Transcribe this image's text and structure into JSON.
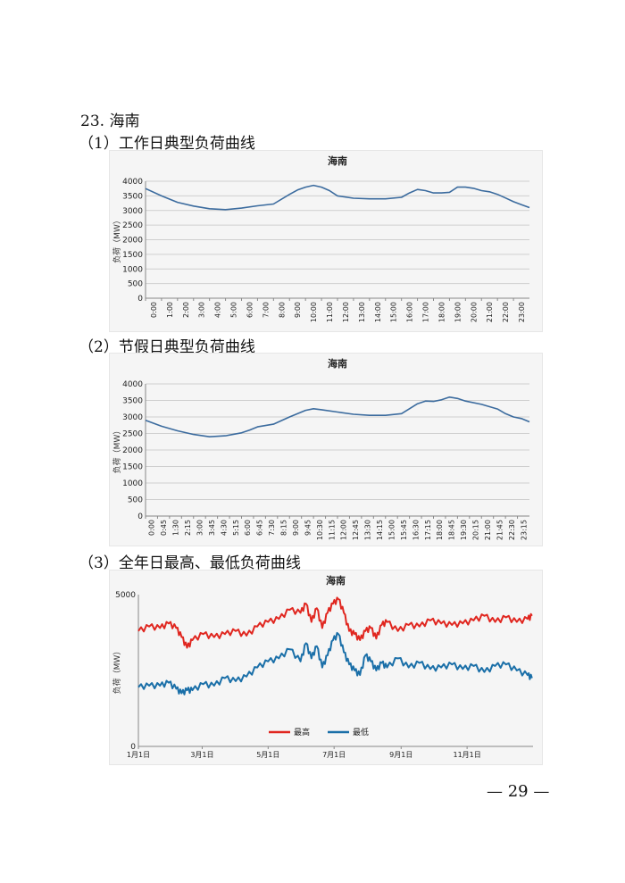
{
  "document": {
    "section_title": "23. 海南",
    "subtitles": [
      "（1）工作日典型负荷曲线",
      "（2）节假日典型负荷曲线",
      "（3）全年日最高、最低负荷曲线"
    ],
    "page_number": "— 29 —"
  },
  "chart_data": [
    {
      "type": "line",
      "title": "海南",
      "ylabel": "负荷（MW）",
      "xlabel": "",
      "ylim": [
        0,
        4000
      ],
      "yticks": [
        0,
        500,
        1000,
        1500,
        2000,
        2500,
        3000,
        3500,
        4000
      ],
      "grid": true,
      "legend": "none",
      "x_tick_labels": [
        "0:00",
        "1:00",
        "2:00",
        "3:00",
        "4:00",
        "5:00",
        "6:00",
        "7:00",
        "8:00",
        "9:00",
        "10:00",
        "11:00",
        "12:00",
        "13:00",
        "14:00",
        "15:00",
        "16:00",
        "17:00",
        "18:00",
        "19:00",
        "20:00",
        "21:00",
        "22:00",
        "23:00"
      ],
      "series": [
        {
          "color": "#3b6b9e",
          "x": [
            0,
            1,
            2,
            3,
            4,
            5,
            6,
            7,
            8,
            9,
            9.5,
            10,
            10.5,
            11,
            11.5,
            12,
            13,
            14,
            15,
            16,
            16.5,
            17,
            17.5,
            18,
            18.5,
            19,
            19.5,
            20,
            20.5,
            21,
            21.5,
            22,
            22.5,
            23,
            23.5,
            24
          ],
          "values": [
            3750,
            3500,
            3280,
            3150,
            3060,
            3030,
            3080,
            3160,
            3220,
            3550,
            3700,
            3800,
            3860,
            3800,
            3680,
            3500,
            3420,
            3400,
            3400,
            3450,
            3600,
            3720,
            3680,
            3600,
            3600,
            3620,
            3800,
            3800,
            3760,
            3680,
            3640,
            3550,
            3430,
            3300,
            3200,
            3100
          ]
        }
      ]
    },
    {
      "type": "line",
      "title": "海南",
      "ylabel": "负荷（MW）",
      "xlabel": "",
      "ylim": [
        0,
        4000
      ],
      "yticks": [
        0,
        500,
        1000,
        1500,
        2000,
        2500,
        3000,
        3500,
        4000
      ],
      "grid": true,
      "legend": "none",
      "x_tick_labels": [
        "0:00",
        "0:45",
        "1:30",
        "2:15",
        "3:00",
        "3:45",
        "4:30",
        "5:15",
        "6:00",
        "6:45",
        "7:30",
        "8:15",
        "9:00",
        "9:45",
        "10:30",
        "11:15",
        "12:00",
        "12:45",
        "13:30",
        "14:15",
        "15:00",
        "15:45",
        "16:30",
        "17:15",
        "18:00",
        "18:45",
        "19:30",
        "20:15",
        "21:00",
        "21:45",
        "22:30",
        "23:15"
      ],
      "series": [
        {
          "color": "#3b6b9e",
          "x": [
            0,
            1,
            2,
            3,
            4,
            5,
            6,
            6.5,
            7,
            8,
            9,
            10,
            10.5,
            11,
            12,
            13,
            14,
            15,
            16,
            16.5,
            17,
            17.5,
            18,
            18.5,
            19,
            19.5,
            20,
            21,
            22,
            22.5,
            23,
            23.5,
            24
          ],
          "values": [
            2900,
            2720,
            2580,
            2470,
            2400,
            2430,
            2520,
            2600,
            2700,
            2780,
            3000,
            3200,
            3250,
            3220,
            3150,
            3080,
            3050,
            3050,
            3100,
            3250,
            3400,
            3480,
            3470,
            3520,
            3600,
            3560,
            3480,
            3380,
            3240,
            3100,
            3000,
            2950,
            2850
          ]
        }
      ]
    },
    {
      "type": "line",
      "title": "海南",
      "ylabel": "负荷（MW）",
      "xlabel": "",
      "ylim": [
        0,
        5000
      ],
      "yticks": [
        0,
        5000
      ],
      "grid": false,
      "legend": "bottom",
      "x_tick_labels": [
        "1月1日",
        "3月1日",
        "5月1日",
        "7月1日",
        "9月1日",
        "11月1日"
      ],
      "x_tick_days": [
        0,
        59,
        120,
        181,
        243,
        304
      ],
      "series": [
        {
          "name": "最高",
          "color": "#e0261f",
          "x": [
            0,
            10,
            20,
            28,
            35,
            40,
            45,
            50,
            60,
            70,
            80,
            90,
            100,
            110,
            120,
            130,
            140,
            150,
            155,
            160,
            165,
            170,
            175,
            180,
            185,
            190,
            195,
            200,
            205,
            210,
            215,
            220,
            225,
            230,
            240,
            250,
            260,
            270,
            280,
            290,
            300,
            310,
            320,
            330,
            340,
            350,
            360,
            364
          ],
          "values": [
            3800,
            3950,
            3900,
            4050,
            3900,
            3600,
            3250,
            3500,
            3700,
            3600,
            3700,
            3800,
            3650,
            3950,
            4100,
            4200,
            4500,
            4400,
            4700,
            4100,
            4550,
            3900,
            4400,
            4700,
            4850,
            4400,
            3800,
            3700,
            3500,
            3800,
            3900,
            3550,
            4000,
            4100,
            3800,
            4000,
            3950,
            4150,
            4050,
            4000,
            4050,
            4150,
            4300,
            4100,
            4250,
            4100,
            4200,
            4300
          ]
        },
        {
          "name": "最低",
          "color": "#1a6fa8",
          "x": [
            0,
            10,
            20,
            28,
            35,
            40,
            45,
            50,
            60,
            70,
            80,
            90,
            100,
            110,
            120,
            130,
            140,
            150,
            155,
            160,
            165,
            170,
            175,
            180,
            185,
            190,
            195,
            200,
            205,
            210,
            215,
            220,
            225,
            230,
            240,
            250,
            260,
            270,
            280,
            290,
            300,
            310,
            320,
            330,
            340,
            350,
            360,
            364
          ],
          "values": [
            1950,
            2000,
            2000,
            2100,
            1900,
            1750,
            1850,
            1850,
            2050,
            2000,
            2250,
            2150,
            2300,
            2600,
            2800,
            2900,
            3200,
            2800,
            3400,
            2900,
            3300,
            2600,
            3000,
            3500,
            3700,
            3100,
            2700,
            2500,
            2350,
            3000,
            2800,
            2500,
            2750,
            2600,
            2900,
            2600,
            2750,
            2550,
            2600,
            2700,
            2550,
            2650,
            2450,
            2650,
            2700,
            2500,
            2350,
            2250
          ]
        }
      ]
    }
  ]
}
